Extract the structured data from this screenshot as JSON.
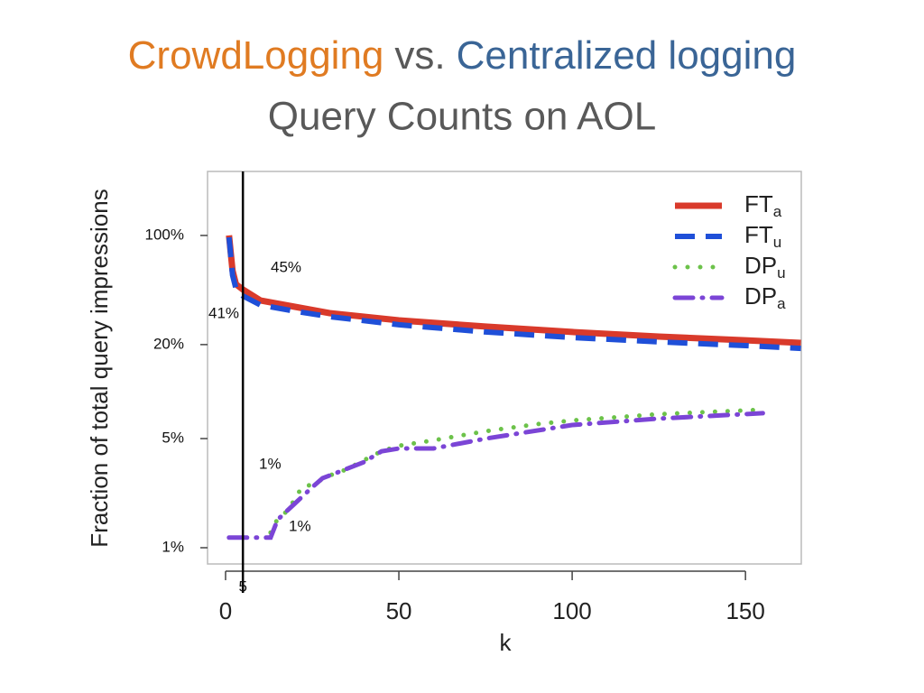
{
  "slide": {
    "title": [
      {
        "text": "CrowdLogging",
        "color": "#e07b22"
      },
      {
        "text": "vs.",
        "color": "#595959"
      },
      {
        "text": "Centralized logging",
        "color": "#3a6596"
      }
    ],
    "subtitle": "Query Counts on AOL"
  },
  "chart_data": {
    "type": "line",
    "x_label": "k",
    "y_label": "Fraction of total query impressions",
    "xlim": [
      -5.2,
      166.1
    ],
    "xticks": [
      0,
      50,
      100,
      150
    ],
    "ylim": [
      0.787,
      257
    ],
    "y_scale": "log",
    "yticks": [
      {
        "value": 1,
        "label": "1%"
      },
      {
        "value": 5,
        "label": "5%"
      },
      {
        "value": 20,
        "label": "20%"
      },
      {
        "value": 100,
        "label": "100%"
      }
    ],
    "vline": 5,
    "legend": "top-right",
    "series": [
      {
        "name": "FT",
        "name_sub": "a",
        "color": "#d93a2b",
        "style": "solid",
        "x": [
          1,
          2,
          3,
          5,
          10,
          20,
          30,
          50,
          75,
          100,
          125,
          150,
          166
        ],
        "values": [
          100,
          59.5,
          48.7,
          45,
          38.4,
          34.9,
          31.8,
          28.6,
          26.1,
          24.1,
          22.5,
          21.3,
          20.5
        ]
      },
      {
        "name": "FT",
        "name_sub": "u",
        "color": "#1f4fd8",
        "style": "dashed",
        "x": [
          1,
          2,
          3,
          5,
          10,
          20,
          30,
          50,
          75,
          100,
          125,
          150,
          166
        ],
        "values": [
          97.3,
          55.7,
          45.6,
          41,
          35.9,
          32.7,
          30.2,
          26.8,
          24.1,
          22.2,
          20.8,
          19.7,
          18.9
        ]
      },
      {
        "name": "DP",
        "name_sub": "u",
        "color": "#6cc24a",
        "style": "dotted",
        "x": [
          13,
          15,
          18,
          22,
          25,
          30,
          35,
          40,
          45,
          50,
          60,
          75,
          90,
          100,
          125,
          155
        ],
        "values": [
          1.25,
          1.53,
          1.73,
          2.44,
          2.54,
          2.9,
          3.18,
          3.64,
          4.15,
          4.5,
          4.87,
          5.57,
          6.19,
          6.53,
          7.17,
          7.66
        ]
      },
      {
        "name": "DP",
        "name_sub": "a",
        "color": "#7b45d6",
        "style": "dashdot",
        "x": [
          1,
          5,
          13,
          15,
          20,
          25,
          28,
          30,
          40,
          45,
          50,
          60,
          75,
          100,
          125,
          155
        ],
        "values": [
          1.16,
          1.16,
          1.16,
          1.51,
          1.92,
          2.44,
          2.79,
          2.9,
          3.54,
          4.15,
          4.32,
          4.32,
          5.0,
          6.11,
          6.71,
          7.27
        ]
      }
    ],
    "annotations": [
      {
        "text": "45%",
        "color": "#d9261c"
      },
      {
        "text": "41%",
        "color": "#1a1ad0"
      },
      {
        "text": "1%",
        "color": "#5ee0a0"
      },
      {
        "text": "1%",
        "color": "#7b2fb0"
      }
    ]
  }
}
